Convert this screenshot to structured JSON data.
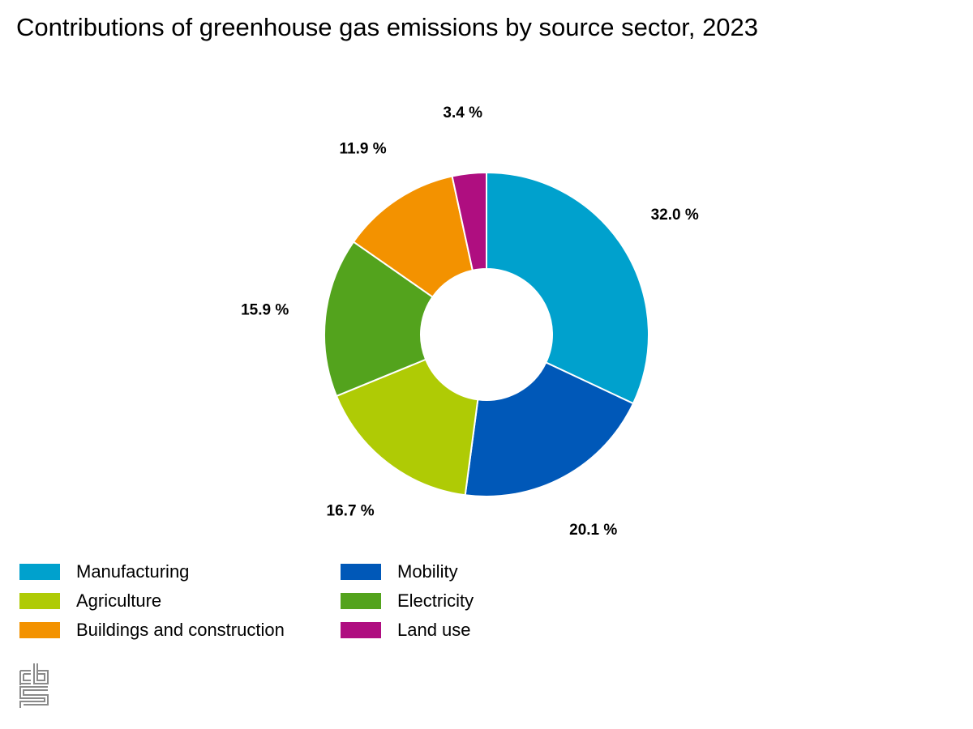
{
  "chart_data": {
    "type": "pie",
    "donut": true,
    "title": "Contributions of greenhouse gas emissions by source sector, 2023",
    "unit": "%",
    "categories": [
      "Manufacturing",
      "Mobility",
      "Agriculture",
      "Electricity",
      "Buildings and construction",
      "Land use"
    ],
    "values": [
      32.0,
      20.1,
      16.7,
      15.9,
      11.9,
      3.4
    ],
    "data_labels": [
      "32.0 %",
      "20.1 %",
      "16.7 %",
      "15.9 %",
      "11.9 %",
      "3.4 %"
    ],
    "colors": [
      "#00a1cd",
      "#0058b8",
      "#afcb05",
      "#53a31d",
      "#f39200",
      "#af0e80"
    ],
    "legend_position": "bottom-left",
    "start_angle": "top",
    "direction": "clockwise"
  },
  "logo": {
    "icon": "cbs-logo-icon"
  }
}
